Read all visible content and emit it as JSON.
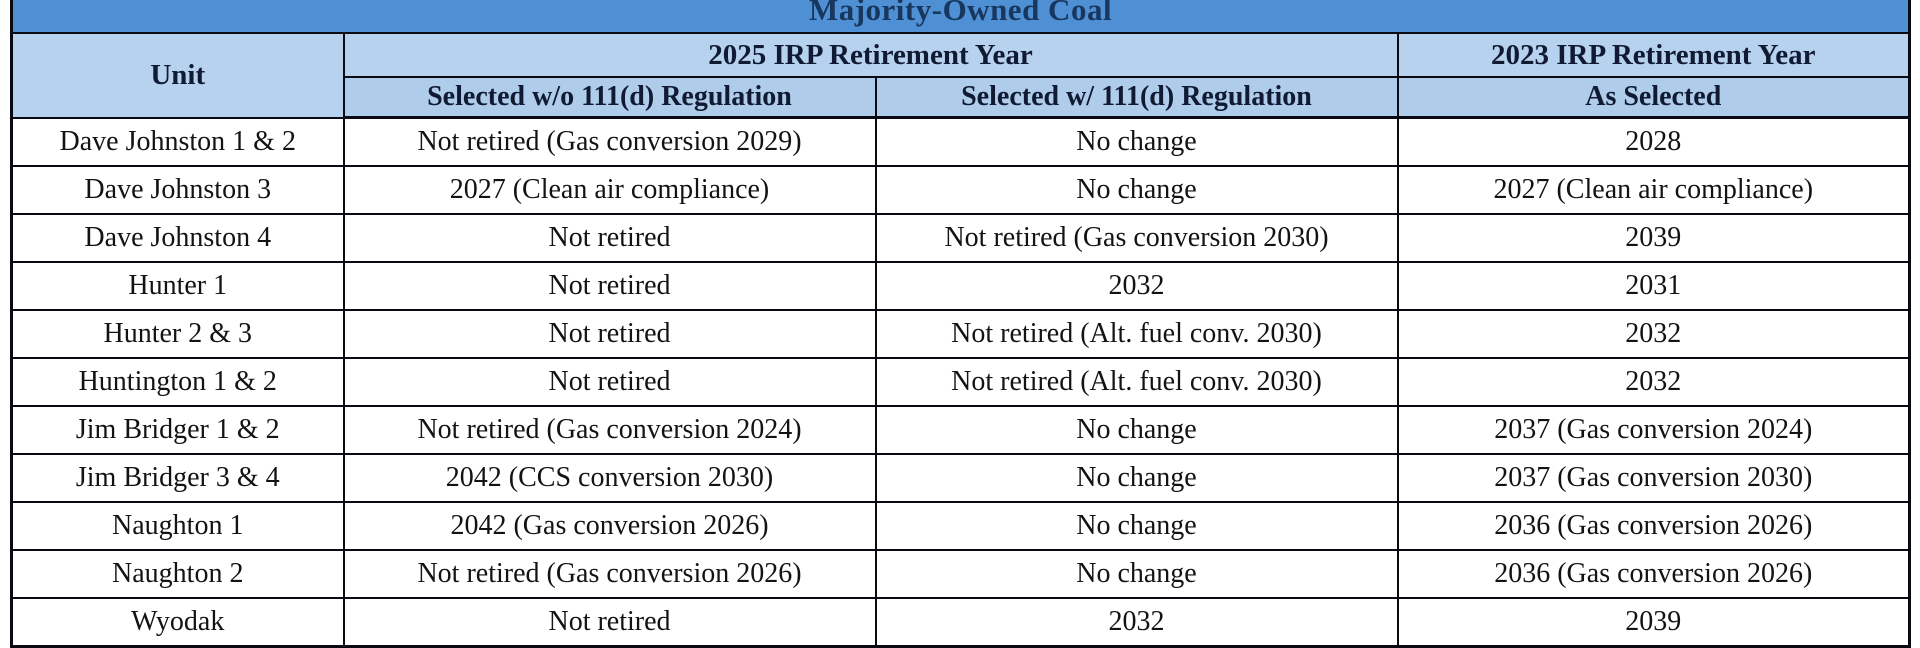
{
  "table": {
    "title": "Majority-Owned Coal",
    "headers": {
      "unit": "Unit",
      "group_2025": "2025 IRP Retirement Year",
      "group_2023": "2023 IRP Retirement Year",
      "sub_without": "Selected w/o 111(d) Regulation",
      "sub_with": "Selected w/ 111(d) Regulation",
      "sub_as_selected": "As Selected"
    },
    "rows": [
      {
        "unit": "Dave Johnston 1 & 2",
        "selected_without_111d": "Not retired (Gas conversion 2029)",
        "selected_with_111d": "No change",
        "as_selected_2023": "2028"
      },
      {
        "unit": "Dave Johnston 3",
        "selected_without_111d": "2027 (Clean air compliance)",
        "selected_with_111d": "No change",
        "as_selected_2023": "2027 (Clean air compliance)"
      },
      {
        "unit": "Dave Johnston 4",
        "selected_without_111d": "Not retired",
        "selected_with_111d": "Not retired (Gas conversion 2030)",
        "as_selected_2023": "2039"
      },
      {
        "unit": "Hunter 1",
        "selected_without_111d": "Not retired",
        "selected_with_111d": "2032",
        "as_selected_2023": "2031"
      },
      {
        "unit": "Hunter 2 & 3",
        "selected_without_111d": "Not retired",
        "selected_with_111d": "Not retired (Alt. fuel conv. 2030)",
        "as_selected_2023": "2032"
      },
      {
        "unit": "Huntington 1 & 2",
        "selected_without_111d": "Not retired",
        "selected_with_111d": "Not retired (Alt. fuel conv. 2030)",
        "as_selected_2023": "2032"
      },
      {
        "unit": "Jim Bridger 1 & 2",
        "selected_without_111d": "Not retired (Gas conversion 2024)",
        "selected_with_111d": "No change",
        "as_selected_2023": "2037 (Gas conversion 2024)"
      },
      {
        "unit": "Jim Bridger 3 & 4",
        "selected_without_111d": "2042 (CCS conversion 2030)",
        "selected_with_111d": "No change",
        "as_selected_2023": "2037 (Gas conversion 2030)"
      },
      {
        "unit": "Naughton 1",
        "selected_without_111d": "2042 (Gas conversion 2026)",
        "selected_with_111d": "No change",
        "as_selected_2023": "2036 (Gas conversion 2026)"
      },
      {
        "unit": "Naughton 2",
        "selected_without_111d": "Not retired (Gas conversion 2026)",
        "selected_with_111d": "No change",
        "as_selected_2023": "2036 (Gas conversion 2026)"
      },
      {
        "unit": "Wyodak",
        "selected_without_111d": "Not retired",
        "selected_with_111d": "2032",
        "as_selected_2023": "2039"
      }
    ],
    "colors": {
      "title_bg": "#4f8fd3",
      "title_text": "#17375e",
      "header_bg": "#b7d2ee",
      "subheader_bg": "#afccea",
      "header_text": "#101b33",
      "body_text": "#131313",
      "border": "#0a0a12"
    }
  }
}
